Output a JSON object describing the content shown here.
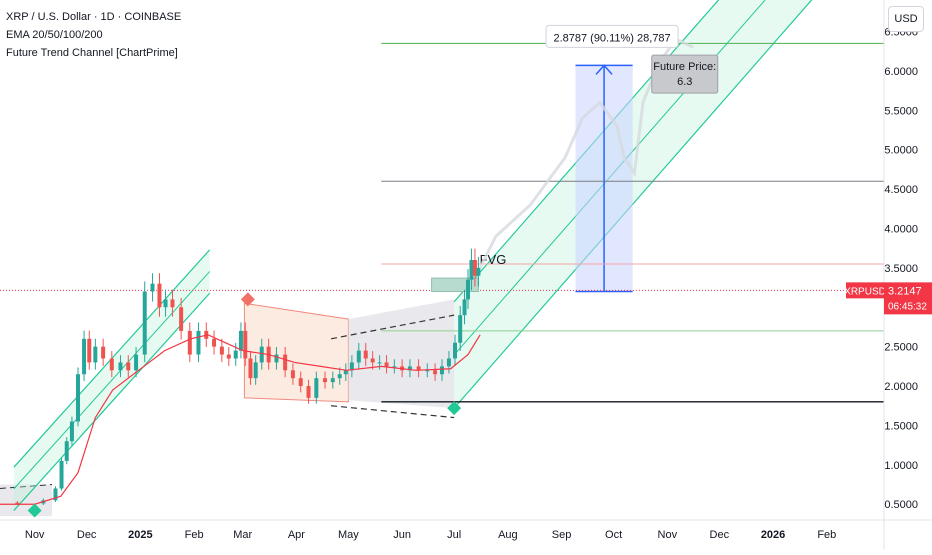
{
  "legend": {
    "symbol_line": "XRP / U.S. Dollar · 1D · COINBASE",
    "indicator_ema": "EMA 20/50/100/200",
    "indicator_channel": "Future Trend Channel [ChartPrime]"
  },
  "currency_button": "USD",
  "price_tag": {
    "symbol": "XRPUSD",
    "price": "3.2147",
    "countdown": "06:45:32",
    "color": "#f23645"
  },
  "chart_data": {
    "type": "candlestick",
    "y_axis_scale": "linear",
    "ylim": [
      0.3,
      6.9
    ],
    "y_ticks": [
      0.5,
      1.0,
      1.5,
      2.0,
      2.5,
      3.0,
      3.5,
      4.0,
      4.5,
      5.0,
      5.5,
      6.0,
      6.5
    ],
    "y_tick_labels": [
      "0.5000",
      "1.0000",
      "1.5000",
      "2.0000",
      "2.5000",
      "3.0000",
      "3.5000",
      "4.0000",
      "4.5000",
      "5.0000",
      "5.5000",
      "6.0000",
      "6.5000"
    ],
    "x_ticks": [
      "Nov",
      "Dec",
      "2025",
      "Feb",
      "Mar",
      "Apr",
      "May",
      "Jun",
      "Jul",
      "Aug",
      "Sep",
      "Oct",
      "Nov",
      "Dec",
      "2026",
      "Feb"
    ],
    "x_tick_days": [
      0,
      30,
      61,
      92,
      120,
      151,
      181,
      212,
      242,
      273,
      304,
      334,
      365,
      395,
      426,
      457
    ],
    "x_range_days": [
      -20,
      490
    ],
    "price_series": [
      [
        -20,
        0.52
      ],
      [
        0,
        0.51
      ],
      [
        10,
        0.55
      ],
      [
        14,
        0.7
      ],
      [
        17,
        1.05
      ],
      [
        20,
        1.3
      ],
      [
        23,
        1.55
      ],
      [
        27,
        2.15
      ],
      [
        30,
        2.6
      ],
      [
        33,
        2.3
      ],
      [
        37,
        2.5
      ],
      [
        42,
        2.35
      ],
      [
        47,
        2.2
      ],
      [
        52,
        2.3
      ],
      [
        56,
        2.2
      ],
      [
        61,
        2.4
      ],
      [
        66,
        3.2
      ],
      [
        70,
        3.3
      ],
      [
        74,
        3.0
      ],
      [
        77,
        3.1
      ],
      [
        82,
        3.0
      ],
      [
        87,
        2.7
      ],
      [
        92,
        2.4
      ],
      [
        97,
        2.7
      ],
      [
        101,
        2.6
      ],
      [
        106,
        2.5
      ],
      [
        110,
        2.4
      ],
      [
        114,
        2.35
      ],
      [
        118,
        2.45
      ],
      [
        120,
        2.7
      ],
      [
        123,
        2.35
      ],
      [
        126,
        2.1
      ],
      [
        129,
        2.3
      ],
      [
        133,
        2.5
      ],
      [
        137,
        2.3
      ],
      [
        142,
        2.4
      ],
      [
        147,
        2.2
      ],
      [
        151,
        2.1
      ],
      [
        156,
        2.0
      ],
      [
        160,
        1.85
      ],
      [
        165,
        2.1
      ],
      [
        170,
        2.05
      ],
      [
        174,
        2.1
      ],
      [
        178,
        2.15
      ],
      [
        181,
        2.2
      ],
      [
        185,
        2.3
      ],
      [
        189,
        2.45
      ],
      [
        193,
        2.35
      ],
      [
        197,
        2.3
      ],
      [
        201,
        2.3
      ],
      [
        205,
        2.25
      ],
      [
        210,
        2.25
      ],
      [
        214,
        2.2
      ],
      [
        219,
        2.25
      ],
      [
        224,
        2.2
      ],
      [
        229,
        2.2
      ],
      [
        233,
        2.15
      ],
      [
        237,
        2.25
      ],
      [
        241,
        2.35
      ],
      [
        244,
        2.55
      ],
      [
        247,
        2.9
      ],
      [
        249,
        3.1
      ],
      [
        251,
        3.35
      ],
      [
        253,
        3.6
      ],
      [
        255,
        3.4
      ],
      [
        257,
        3.5
      ]
    ],
    "projection_series": [
      [
        257,
        3.5
      ],
      [
        266,
        3.9
      ],
      [
        276,
        4.1
      ],
      [
        286,
        4.3
      ],
      [
        296,
        4.6
      ],
      [
        306,
        4.9
      ],
      [
        316,
        5.4
      ],
      [
        326,
        5.6
      ],
      [
        336,
        5.3
      ],
      [
        340,
        4.9
      ],
      [
        346,
        4.7
      ],
      [
        351,
        5.6
      ],
      [
        360,
        6.1
      ],
      [
        370,
        6.4
      ],
      [
        380,
        6.3
      ]
    ],
    "ema_series": [
      [
        -20,
        0.5
      ],
      [
        0,
        0.5
      ],
      [
        15,
        0.6
      ],
      [
        25,
        0.9
      ],
      [
        35,
        1.6
      ],
      [
        45,
        1.95
      ],
      [
        60,
        2.2
      ],
      [
        75,
        2.45
      ],
      [
        90,
        2.6
      ],
      [
        100,
        2.65
      ],
      [
        110,
        2.55
      ],
      [
        120,
        2.45
      ],
      [
        135,
        2.4
      ],
      [
        150,
        2.3
      ],
      [
        165,
        2.25
      ],
      [
        180,
        2.2
      ],
      [
        200,
        2.25
      ],
      [
        220,
        2.2
      ],
      [
        240,
        2.22
      ],
      [
        250,
        2.4
      ],
      [
        257,
        2.65
      ]
    ],
    "horizontal_levels": [
      {
        "y": 6.35,
        "color": "#4caf50"
      },
      {
        "y": 4.6,
        "color": "#787b86"
      },
      {
        "y": 3.55,
        "color": "#f5a3a8"
      },
      {
        "y": 3.2147,
        "color": "#f23645",
        "style": "dotted"
      },
      {
        "y": 2.7,
        "color": "#8bd18f"
      },
      {
        "y": 1.8,
        "color": "#131722"
      }
    ],
    "fvg_box": {
      "label": "FVG",
      "x0": 229,
      "x1": 256,
      "y0": 3.2,
      "y1": 3.37
    },
    "measure_box": {
      "x0": 312,
      "x1": 345,
      "y0": 3.2,
      "y1": 6.07,
      "label": "2.8787 (90.11%) 28,787"
    },
    "future_price_note": {
      "line1": "Future Price:",
      "line2": "6.3"
    },
    "channels": [
      {
        "name": "early",
        "base": [
          [
            -12,
            0.42
          ],
          [
            101,
            3.18
          ]
        ],
        "offset": 0.55
      },
      {
        "name": "future",
        "base": [
          [
            242,
            1.72
          ],
          [
            500,
            8.2
          ]
        ],
        "offset": 1.35
      }
    ],
    "range_box_pink": {
      "x0": 121,
      "x1": 181,
      "ytop": [
        3.05,
        2.85
      ],
      "ybot": [
        1.85,
        1.8
      ]
    },
    "range_box_gray": {
      "x0": 181,
      "x1": 242,
      "ytop": [
        2.85,
        3.1
      ],
      "ybot": [
        1.82,
        1.72
      ],
      "dashed_top": [
        2.6,
        2.9
      ],
      "dashed_bottom": [
        1.75,
        1.6
      ]
    },
    "markers": [
      {
        "x": 0,
        "y": 0.42,
        "color": "#22c997"
      },
      {
        "x": 123,
        "y": 3.1,
        "color": "#f07167"
      },
      {
        "x": 242,
        "y": 1.72,
        "color": "#22c997"
      }
    ]
  }
}
